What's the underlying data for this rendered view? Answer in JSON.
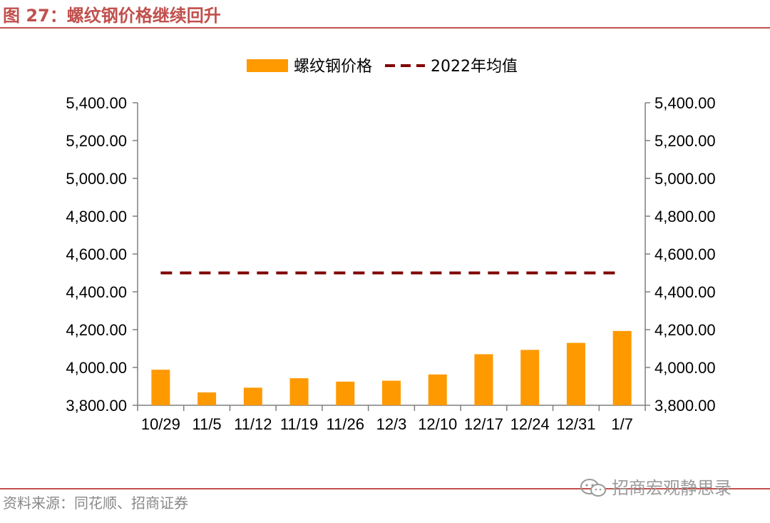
{
  "figure": {
    "title": "图 27：螺纹钢价格继续回升",
    "source": "资料来源：同花顺、招商证券",
    "watermark": "招商宏观静思录"
  },
  "colors": {
    "bar": "#FF9900",
    "avg_line": "#7F0000",
    "axis": "#7F7F7F",
    "title": "#C0504D"
  },
  "chart_data": {
    "type": "bar",
    "categories": [
      "10/29",
      "11/5",
      "11/12",
      "11/19",
      "11/26",
      "12/3",
      "12/10",
      "12/17",
      "12/24",
      "12/31",
      "1/7"
    ],
    "series": [
      {
        "name": "螺纹钢价格",
        "type": "bar",
        "values": [
          3988,
          3868,
          3893,
          3943,
          3925,
          3930,
          3963,
          4070,
          4093,
          4130,
          4193
        ]
      },
      {
        "name": "2022年均值",
        "type": "line",
        "style": "dashed",
        "values": [
          4500,
          4500,
          4500,
          4500,
          4500,
          4500,
          4500,
          4500,
          4500,
          4500,
          4500
        ]
      }
    ],
    "ylim": [
      3800,
      5400
    ],
    "yticks": [
      "3,800.00",
      "4,000.00",
      "4,200.00",
      "4,400.00",
      "4,600.00",
      "4,800.00",
      "5,000.00",
      "5,200.00",
      "5,400.00"
    ],
    "secondary_yticks": [
      "3,800.00",
      "4,000.00",
      "4,200.00",
      "4,400.00",
      "4,600.00",
      "4,800.00",
      "5,000.00",
      "5,200.00",
      "5,400.00"
    ],
    "legend_position": "top-center",
    "grid": false
  }
}
